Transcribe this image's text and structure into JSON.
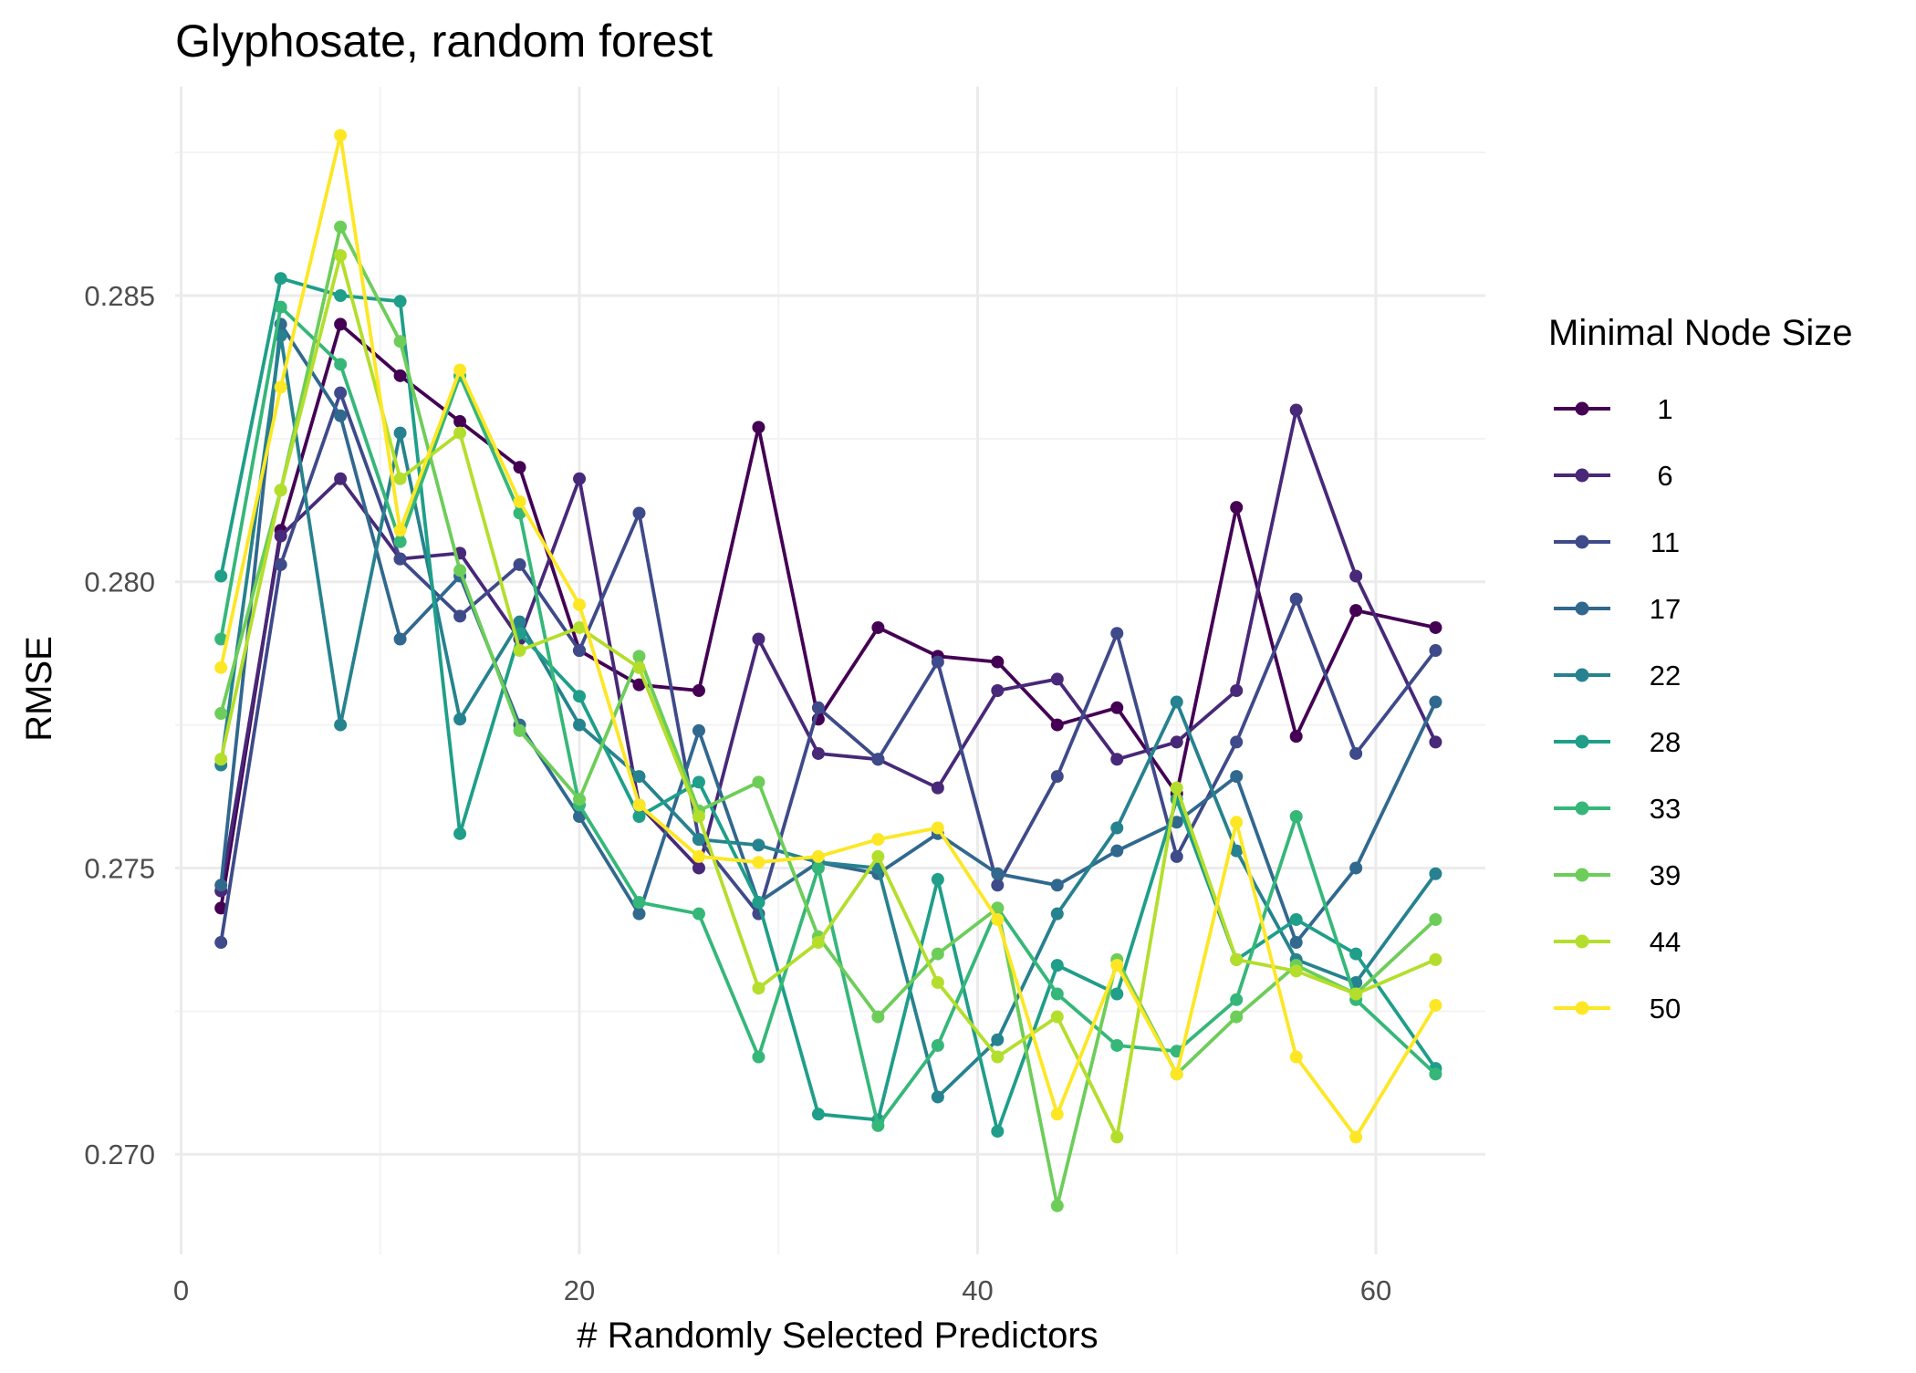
{
  "chart_data": {
    "type": "line",
    "title": "Glyphosate, random forest",
    "xlabel": "# Randomly Selected Predictors",
    "ylabel": "RMSE",
    "xlim": [
      -0.3,
      65.5
    ],
    "ylim": [
      0.26825,
      0.28865
    ],
    "x_ticks": [
      0,
      20,
      40,
      60
    ],
    "x_tick_labels": [
      "0",
      "20",
      "40",
      "60"
    ],
    "y_ticks": [
      0.27,
      0.275,
      0.28,
      0.285
    ],
    "y_tick_labels": [
      "0.270",
      "0.275",
      "0.280",
      "0.285"
    ],
    "grid": true,
    "legend_title": "Minimal Node Size",
    "legend_position": "right",
    "x": [
      2,
      5,
      8,
      11,
      14,
      17,
      20,
      23,
      26,
      29,
      32,
      35,
      38,
      41,
      44,
      47,
      50,
      53,
      56,
      59,
      63
    ],
    "series": [
      {
        "name": "1",
        "label": " 1",
        "color": "#440154",
        "values": [
          0.2743,
          0.2809,
          0.2845,
          0.2836,
          0.2828,
          0.282,
          0.2788,
          0.2782,
          0.2781,
          0.2827,
          0.2776,
          0.2792,
          0.2787,
          0.2786,
          0.2775,
          0.2778,
          0.2763,
          0.2813,
          0.2773,
          0.2795,
          0.2792
        ]
      },
      {
        "name": "6",
        "label": " 6",
        "color": "#482878",
        "values": [
          0.2746,
          0.2808,
          0.2818,
          0.2804,
          0.2805,
          0.279,
          0.2818,
          0.2761,
          0.275,
          0.279,
          0.277,
          0.2769,
          0.2764,
          0.2781,
          0.2783,
          0.2769,
          0.2772,
          0.2781,
          0.283,
          0.2801,
          0.2772
        ]
      },
      {
        "name": "11",
        "label": "11",
        "color": "#3E4A89",
        "values": [
          0.2737,
          0.2803,
          0.2833,
          0.2804,
          0.2794,
          0.2803,
          0.2788,
          0.2812,
          0.2755,
          0.2742,
          0.2778,
          0.2769,
          0.2786,
          0.2747,
          0.2766,
          0.2791,
          0.2752,
          0.2772,
          0.2797,
          0.277,
          0.2788
        ]
      },
      {
        "name": "17",
        "label": "17",
        "color": "#31688E",
        "values": [
          0.2747,
          0.2845,
          0.2829,
          0.279,
          0.2801,
          0.2775,
          0.2759,
          0.2742,
          0.2774,
          0.2744,
          0.2751,
          0.2749,
          0.2756,
          0.2749,
          0.2747,
          0.2753,
          0.2758,
          0.2766,
          0.2737,
          0.275,
          0.2779
        ]
      },
      {
        "name": "22",
        "label": "22",
        "color": "#26828E",
        "values": [
          0.2768,
          0.2843,
          0.2775,
          0.2826,
          0.2776,
          0.2793,
          0.2775,
          0.2766,
          0.2755,
          0.2754,
          0.2751,
          0.275,
          0.271,
          0.272,
          0.2742,
          0.2757,
          0.2779,
          0.2753,
          0.2734,
          0.273,
          0.2749
        ]
      },
      {
        "name": "28",
        "label": "28",
        "color": "#1F9E89",
        "values": [
          0.2801,
          0.2853,
          0.285,
          0.2849,
          0.2756,
          0.2791,
          0.278,
          0.2759,
          0.2765,
          0.2744,
          0.2707,
          0.2706,
          0.2748,
          0.2704,
          0.2733,
          0.2728,
          0.2762,
          0.2734,
          0.2741,
          0.2735,
          0.2715
        ]
      },
      {
        "name": "33",
        "label": "33",
        "color": "#35B779",
        "values": [
          0.279,
          0.2848,
          0.2838,
          0.2807,
          0.2836,
          0.2812,
          0.2761,
          0.2744,
          0.2742,
          0.2717,
          0.275,
          0.2705,
          0.2719,
          0.2743,
          0.2728,
          0.2719,
          0.2718,
          0.2727,
          0.2759,
          0.2727,
          0.2714
        ]
      },
      {
        "name": "39",
        "label": "39",
        "color": "#6DCD59",
        "values": [
          0.2777,
          0.2816,
          0.2862,
          0.2842,
          0.2802,
          0.2774,
          0.2762,
          0.2787,
          0.276,
          0.2765,
          0.2738,
          0.2724,
          0.2735,
          0.2743,
          0.2691,
          0.2734,
          0.2714,
          0.2724,
          0.2733,
          0.2728,
          0.2741
        ]
      },
      {
        "name": "44",
        "label": "44",
        "color": "#B4DE2C",
        "values": [
          0.2769,
          0.2816,
          0.2857,
          0.2818,
          0.2826,
          0.2788,
          0.2792,
          0.2785,
          0.2759,
          0.2729,
          0.2737,
          0.2752,
          0.273,
          0.2717,
          0.2724,
          0.2703,
          0.2764,
          0.2734,
          0.2732,
          0.2728,
          0.2734
        ]
      },
      {
        "name": "50",
        "label": "50",
        "color": "#FDE725",
        "values": [
          0.2785,
          0.2834,
          0.2878,
          0.2809,
          0.2837,
          0.2814,
          0.2796,
          0.2761,
          0.2752,
          0.2751,
          0.2752,
          0.2755,
          0.2757,
          0.2741,
          0.2707,
          0.2733,
          0.2714,
          0.2758,
          0.2717,
          0.2703,
          0.2726
        ]
      }
    ]
  }
}
